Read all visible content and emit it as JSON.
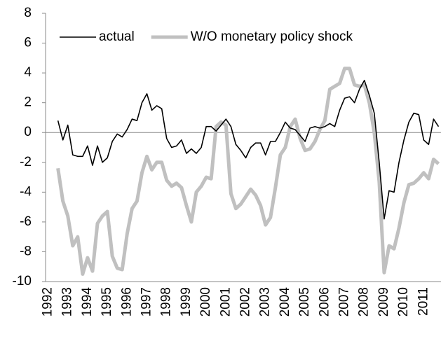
{
  "chart_data": {
    "type": "line",
    "categories": [
      "1992",
      null,
      null,
      null,
      "1993",
      null,
      null,
      null,
      "1994",
      null,
      null,
      null,
      "1995",
      null,
      null,
      null,
      "1996",
      null,
      null,
      null,
      "1997",
      null,
      null,
      null,
      "1998",
      null,
      null,
      null,
      "1999",
      null,
      null,
      null,
      "2000",
      null,
      null,
      null,
      "2001",
      null,
      null,
      null,
      "2002",
      null,
      null,
      null,
      "2003",
      null,
      null,
      null,
      "2004",
      null,
      null,
      null,
      "2005",
      null,
      null,
      null,
      "2006",
      null,
      null,
      null,
      "2007",
      null,
      null,
      null,
      "2008",
      null,
      null,
      null,
      "2009",
      null,
      null,
      null,
      "2010",
      null,
      null,
      null,
      "2011",
      null,
      null,
      null
    ],
    "series": [
      {
        "name": "actual",
        "color": "#000000",
        "width": 1.6,
        "values": [
          null,
          null,
          0.8,
          -0.5,
          0.5,
          -1.5,
          -1.6,
          -1.6,
          -0.9,
          -2.2,
          -0.9,
          -2.0,
          -1.7,
          -0.6,
          -0.1,
          -0.3,
          0.2,
          0.9,
          0.8,
          2.0,
          2.6,
          1.5,
          1.8,
          1.6,
          -0.4,
          -1.0,
          -0.9,
          -0.5,
          -1.4,
          -1.1,
          -1.4,
          -1.0,
          0.4,
          0.4,
          0.1,
          0.5,
          0.9,
          0.4,
          -0.8,
          -1.2,
          -1.7,
          -1.0,
          -0.7,
          -0.7,
          -1.5,
          -0.6,
          -0.6,
          0.0,
          0.7,
          0.3,
          0.2,
          -0.2,
          -0.6,
          0.3,
          0.4,
          0.3,
          0.4,
          0.6,
          0.4,
          1.5,
          2.3,
          2.4,
          2.0,
          2.9,
          3.5,
          2.5,
          1.3,
          -2.0,
          -5.8,
          -3.9,
          -4.0,
          -2.0,
          -0.5,
          0.7,
          1.3,
          1.2,
          -0.5,
          -0.8,
          0.9,
          0.4
        ]
      },
      {
        "name": "W/O monetary policy shock",
        "color": "#c0c0c0",
        "width": 5,
        "values": [
          null,
          null,
          -2.4,
          -4.6,
          -5.6,
          -7.6,
          -7.0,
          -9.5,
          -8.4,
          -9.3,
          -6.1,
          -5.6,
          -5.3,
          -8.3,
          -9.1,
          -9.2,
          -6.8,
          -5.1,
          -4.6,
          -2.7,
          -1.6,
          -2.5,
          -2.0,
          -2.0,
          -3.2,
          -3.6,
          -3.4,
          -3.7,
          -4.9,
          -6.0,
          -4.0,
          -3.6,
          -3.0,
          -3.1,
          0.4,
          0.7,
          0.5,
          -4.1,
          -5.1,
          -4.8,
          -4.3,
          -3.8,
          -4.2,
          -4.9,
          -6.2,
          -5.7,
          -3.7,
          -1.5,
          -1.0,
          0.4,
          0.9,
          -0.4,
          -1.2,
          -1.1,
          -0.6,
          0.2,
          0.8,
          2.9,
          3.1,
          3.3,
          4.3,
          4.3,
          3.2,
          3.1,
          3.2,
          2.0,
          0.0,
          -3.3,
          -9.4,
          -7.6,
          -7.8,
          -6.4,
          -4.7,
          -3.5,
          -3.4,
          -3.1,
          -2.7,
          -3.1,
          -1.8,
          -2.1
        ]
      }
    ],
    "ylim": [
      -10,
      8
    ],
    "yticks": [
      -10,
      -8,
      -6,
      -4,
      -2,
      0,
      2,
      4,
      6,
      8
    ],
    "grid": false,
    "legend": "top-left"
  }
}
